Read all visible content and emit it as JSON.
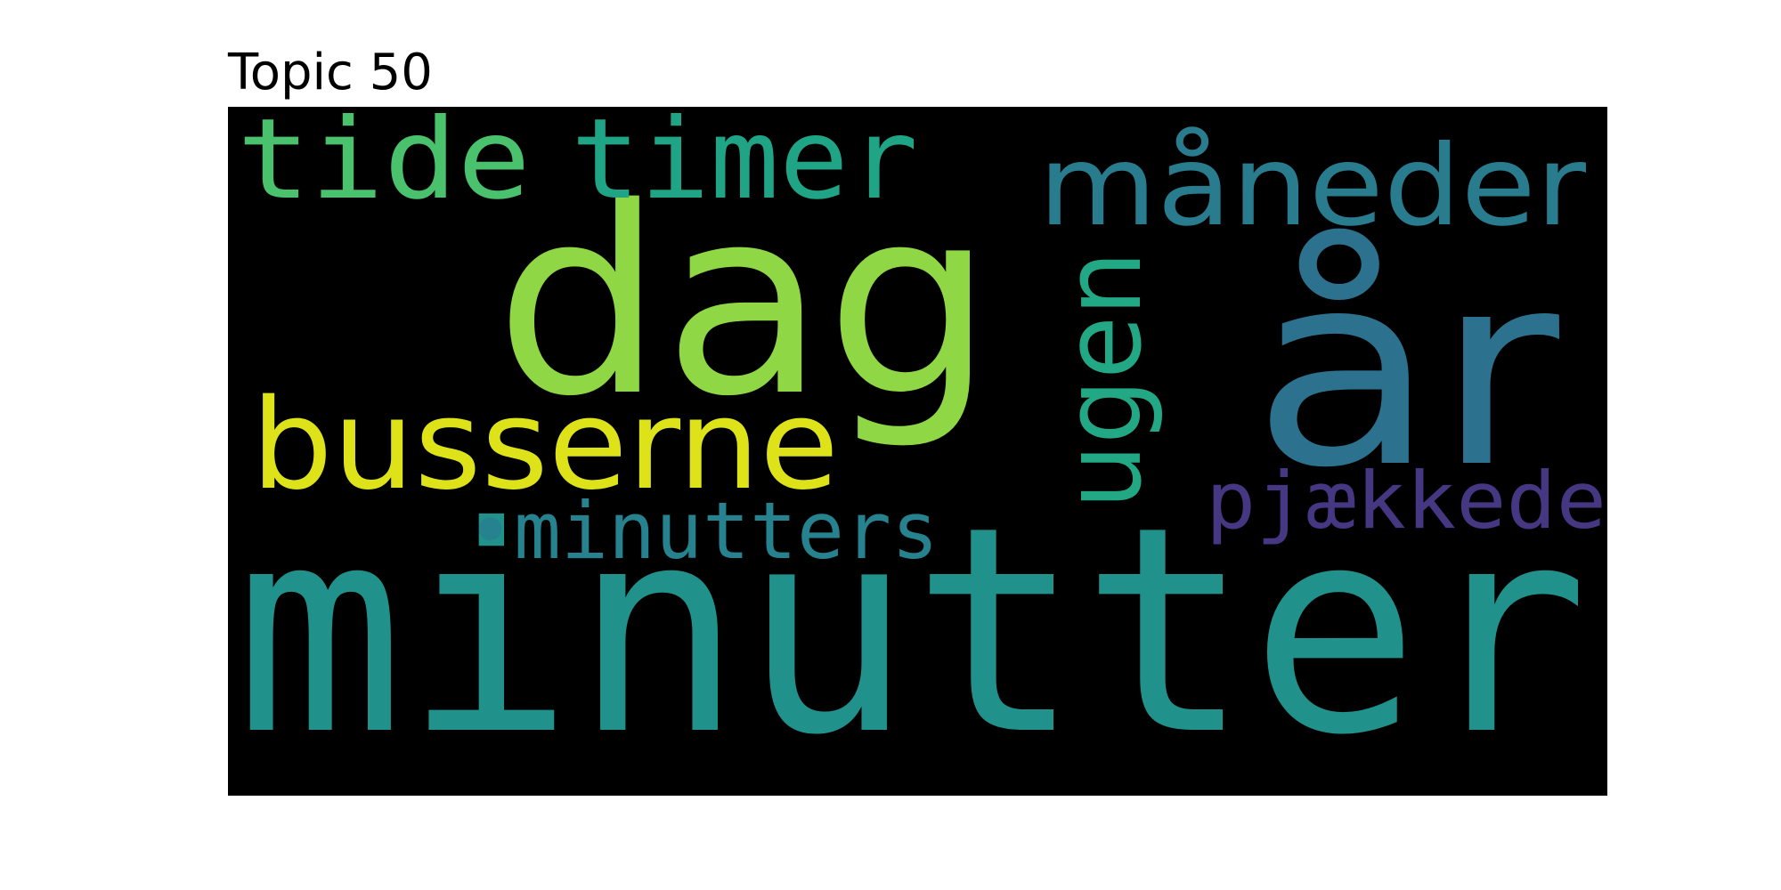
{
  "title": "Topic 50",
  "words": [
    {
      "text": "minutter",
      "color": "#21918c"
    },
    {
      "text": "dag",
      "color": "#8fd744"
    },
    {
      "text": "år",
      "color": "#2c728e"
    },
    {
      "text": "busserne",
      "color": "#dde318"
    },
    {
      "text": "tide",
      "color": "#4ac16d"
    },
    {
      "text": "timer",
      "color": "#20a486"
    },
    {
      "text": "måneder",
      "color": "#297b8e"
    },
    {
      "text": "ugen",
      "color": "#22a884"
    },
    {
      "text": "•minutters",
      "color": "#26828e"
    },
    {
      "text": "pjækkede",
      "color": "#453781"
    }
  ]
}
